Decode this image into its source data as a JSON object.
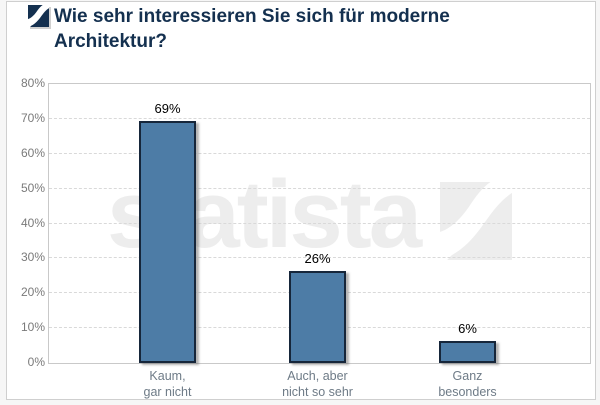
{
  "header": {
    "title_line1": "Wie sehr interessieren Sie sich für moderne",
    "title_line2": "Architektur?"
  },
  "watermark": {
    "text": "statista"
  },
  "chart_data": {
    "type": "bar",
    "title": "Wie sehr interessieren Sie sich für moderne Architektur?",
    "categories": [
      [
        "Kaum,",
        "gar nicht"
      ],
      [
        "Auch, aber",
        "nicht so sehr"
      ],
      [
        "Ganz",
        "besonders"
      ]
    ],
    "values": [
      69,
      26,
      6
    ],
    "value_labels": [
      "69%",
      "26%",
      "6%"
    ],
    "ylabel": "",
    "xlabel": "",
    "ylim": [
      0,
      80
    ],
    "ytick_step": 10,
    "yticklabels": [
      "0%",
      "10%",
      "20%",
      "30%",
      "40%",
      "50%",
      "60%",
      "70%",
      "80%"
    ],
    "grid": "horizontal-dashed",
    "legend": "none",
    "bar_color": "#4d7ca6",
    "bar_border_color": "#16263a"
  },
  "colors": {
    "title": "#14304f",
    "logo_navy": "#14304f",
    "axis_label_gray": "#7a7a7a",
    "category_label_gray": "#6e7b87",
    "grid_gray": "#d9d9d9",
    "plot_border": "#c9c9c9",
    "watermark_gray": "#ededed",
    "widget_border": "#cfcfcf"
  }
}
